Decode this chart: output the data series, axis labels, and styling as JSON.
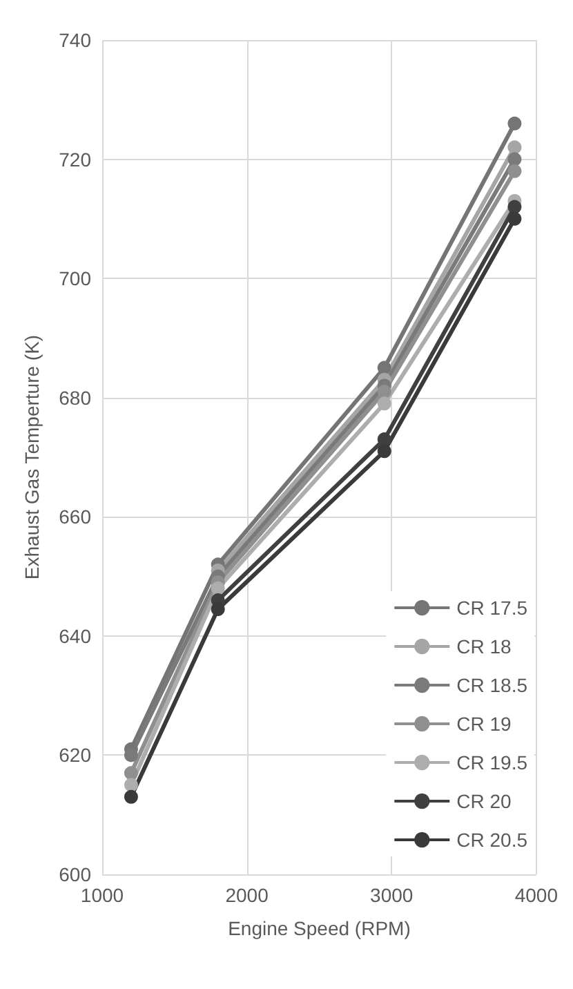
{
  "chart_data": {
    "type": "line",
    "xlabel": "Engine Speed (RPM)",
    "ylabel": "Exhaust Gas Temperture (K)",
    "x": [
      1200,
      1800,
      2950,
      3850
    ],
    "xlim": [
      1000,
      4000
    ],
    "xticks": [
      1000,
      2000,
      3000,
      4000
    ],
    "ylim": [
      600,
      740
    ],
    "yticks": [
      600,
      620,
      640,
      660,
      680,
      700,
      720,
      740
    ],
    "grid": true,
    "legend": "bottom right",
    "marker": "circle",
    "line_style": "solid",
    "series": [
      {
        "name": "CR 17.5",
        "color": "#757575",
        "values": [
          621,
          652,
          685,
          726
        ]
      },
      {
        "name": "CR 18",
        "color": "#a5a5a5",
        "values": [
          null,
          651,
          683,
          722
        ]
      },
      {
        "name": "CR 18.5",
        "color": "#7a7a7a",
        "values": [
          620,
          650,
          682,
          720
        ]
      },
      {
        "name": "CR 19",
        "color": "#8f8f8f",
        "values": [
          617,
          649,
          681,
          718
        ]
      },
      {
        "name": "CR 19.5",
        "color": "#adadad",
        "values": [
          615,
          648,
          679,
          713
        ]
      },
      {
        "name": "CR 20",
        "color": "#404040",
        "values": [
          null,
          646,
          673,
          712
        ]
      },
      {
        "name": "CR 20.5",
        "color": "#3a3a3a",
        "values": [
          613,
          644.5,
          671,
          710
        ]
      }
    ]
  }
}
